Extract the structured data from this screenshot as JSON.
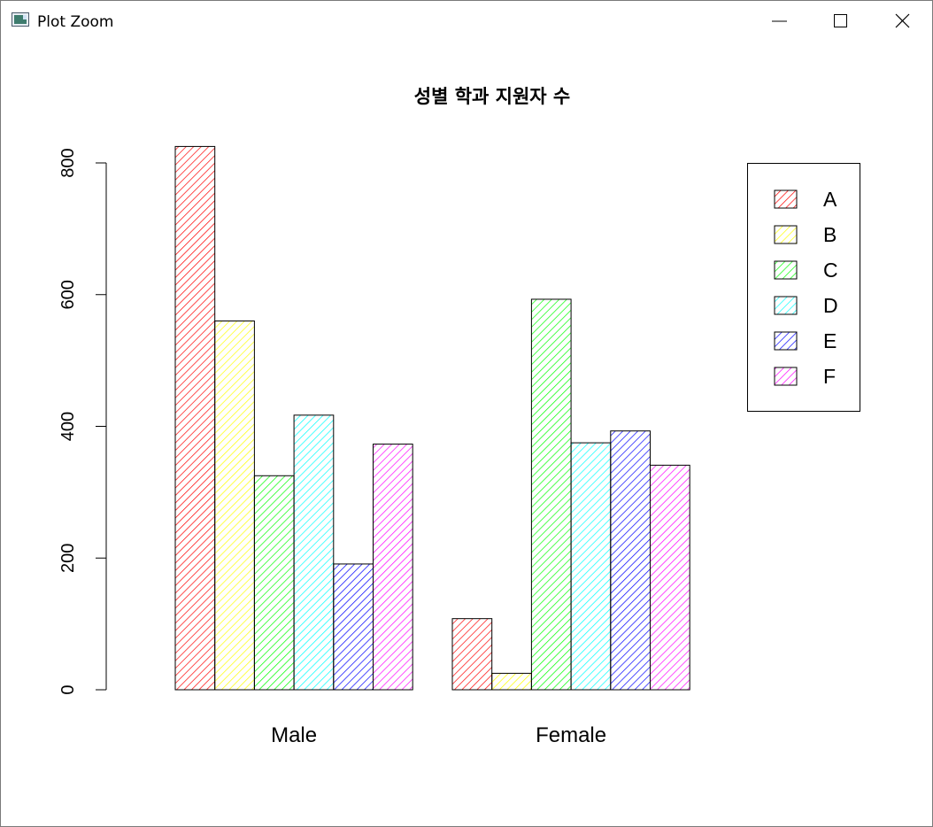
{
  "window": {
    "title": "Plot Zoom",
    "controls": {
      "minimize": "minimize",
      "maximize": "maximize",
      "close": "close"
    }
  },
  "chart_data": {
    "type": "bar",
    "title": "성별 학과 지원자 수",
    "xlabel": "",
    "ylabel": "",
    "categories": [
      "Male",
      "Female"
    ],
    "series": [
      {
        "name": "A",
        "values": [
          825,
          108
        ],
        "color": "#ff0000"
      },
      {
        "name": "B",
        "values": [
          560,
          25
        ],
        "color": "#ffff00"
      },
      {
        "name": "C",
        "values": [
          325,
          593
        ],
        "color": "#00ff00"
      },
      {
        "name": "D",
        "values": [
          417,
          375
        ],
        "color": "#00ffff"
      },
      {
        "name": "E",
        "values": [
          191,
          393
        ],
        "color": "#0000ff"
      },
      {
        "name": "F",
        "values": [
          373,
          341
        ],
        "color": "#ff00ff"
      }
    ],
    "yticks": [
      0,
      200,
      400,
      600,
      800
    ],
    "ylim": [
      0,
      825
    ],
    "barstyle": "beside, hatched (density lines)",
    "legend": "top-right",
    "grid": false
  }
}
